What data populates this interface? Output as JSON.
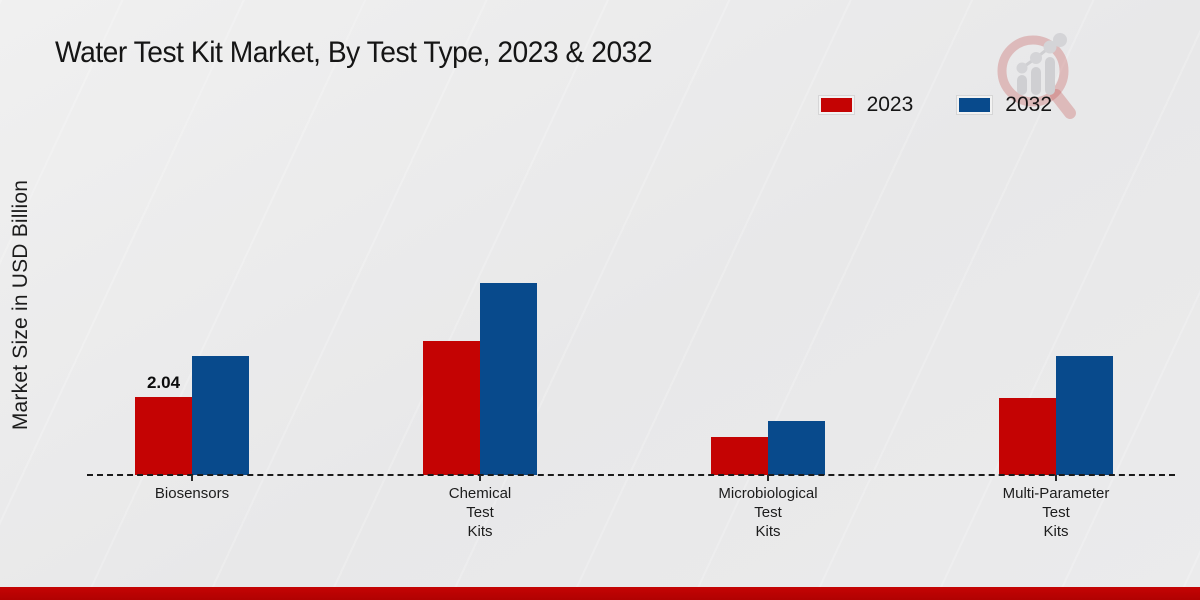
{
  "title": "Water Test Kit Market, By Test Type, 2023 & 2032",
  "branding": {
    "logo_icon": "magnifier-growth-chart-logo"
  },
  "chart_data": {
    "type": "bar",
    "categories": [
      "Biosensors",
      "Chemical Test Kits",
      "Microbiological Test Kits",
      "Multi-Parameter Test Kits"
    ],
    "series": [
      {
        "name": "2023",
        "color": "#c40303",
        "values": [
          2.04,
          3.5,
          1.0,
          2.01
        ]
      },
      {
        "name": "2032",
        "color": "#084a8c",
        "values": [
          3.11,
          5.02,
          1.41,
          3.11
        ]
      }
    ],
    "value_labels": [
      {
        "series_index": 0,
        "category_index": 0,
        "text": "2.04"
      }
    ],
    "ylabel": "Market Size in USD Billion",
    "xlabel": "",
    "ylim": [
      0,
      6.2
    ],
    "grid": false,
    "legend_position": "top-right",
    "baseline_style": "dashed"
  }
}
